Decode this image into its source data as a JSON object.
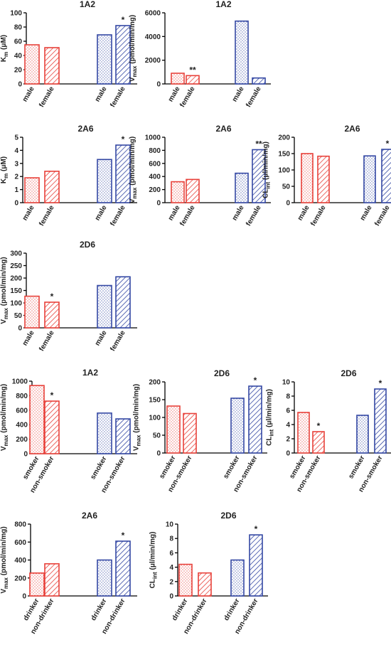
{
  "colors": {
    "red": "#e8413a",
    "blue": "#3347a3",
    "axis": "#000000"
  },
  "chart_data": [
    {
      "type": "bar",
      "title": "1A2",
      "ylabel": "Km (μM)",
      "ylabel_main": "K",
      "ylabel_sub": "m",
      "ylabel_rest": " (μM)",
      "ylim": [
        0,
        100
      ],
      "yticks": [
        "0",
        "20",
        "40",
        "60",
        "80",
        "100"
      ],
      "categories": [
        "male",
        "female",
        "male",
        "female"
      ],
      "values": [
        55,
        51,
        69,
        82
      ],
      "colors": [
        "red",
        "red",
        "blue",
        "blue"
      ],
      "fills": [
        "dots",
        "hatch",
        "dots",
        "hatch"
      ],
      "stars": [
        "",
        "",
        "",
        "*"
      ]
    },
    {
      "type": "bar",
      "title": "1A2",
      "ylabel": "Vmax (pmol/min/mg)",
      "ylabel_main": "V",
      "ylabel_sub": "max",
      "ylabel_rest": " (pmol/min/mg)",
      "ylim": [
        0,
        6000
      ],
      "yticks": [
        "0",
        "2000",
        "4000",
        "6000"
      ],
      "categories": [
        "male",
        "female",
        "male",
        "female"
      ],
      "values": [
        900,
        700,
        5300,
        500
      ],
      "colors": [
        "red",
        "red",
        "blue",
        "blue"
      ],
      "fills": [
        "dots",
        "hatch",
        "dots",
        "hatch"
      ],
      "stars": [
        "",
        "**",
        "",
        ""
      ]
    },
    {
      "type": "bar",
      "title": "2A6",
      "ylabel": "Km (μM)",
      "ylabel_main": "K",
      "ylabel_sub": "m",
      "ylabel_rest": " (μM)",
      "ylim": [
        0,
        5
      ],
      "yticks": [
        "0",
        "1",
        "2",
        "3",
        "4",
        "5"
      ],
      "categories": [
        "male",
        "female",
        "male",
        "female"
      ],
      "values": [
        1.9,
        2.4,
        3.3,
        4.4
      ],
      "colors": [
        "red",
        "red",
        "blue",
        "blue"
      ],
      "fills": [
        "dots",
        "hatch",
        "dots",
        "hatch"
      ],
      "stars": [
        "",
        "",
        "",
        "*"
      ]
    },
    {
      "type": "bar",
      "title": "2A6",
      "ylabel": "Vmax (pmol/min/mg)",
      "ylabel_main": "V",
      "ylabel_sub": "max",
      "ylabel_rest": " (pmol/min/mg)",
      "ylim": [
        0,
        1000
      ],
      "yticks": [
        "0",
        "200",
        "400",
        "600",
        "800",
        "1000"
      ],
      "categories": [
        "male",
        "female",
        "male",
        "female"
      ],
      "values": [
        320,
        355,
        450,
        810
      ],
      "colors": [
        "red",
        "red",
        "blue",
        "blue"
      ],
      "fills": [
        "dots",
        "hatch",
        "dots",
        "hatch"
      ],
      "stars": [
        "",
        "",
        "",
        "**"
      ]
    },
    {
      "type": "bar",
      "title": "2A6",
      "ylabel": "CLint (μl/min/mg)",
      "ylabel_main": "CL",
      "ylabel_sub": "int",
      "ylabel_rest": " (μl/min/mg)",
      "ylim": [
        0,
        200
      ],
      "yticks": [
        "0",
        "50",
        "100",
        "150",
        "200"
      ],
      "categories": [
        "male",
        "female",
        "male",
        "female"
      ],
      "values": [
        150,
        142,
        143,
        163
      ],
      "colors": [
        "red",
        "red",
        "blue",
        "blue"
      ],
      "fills": [
        "dots",
        "hatch",
        "dots",
        "hatch"
      ],
      "stars": [
        "",
        "",
        "",
        "*"
      ]
    },
    {
      "type": "bar",
      "title": "2D6",
      "ylabel": "Vmax (pmol/min/mg)",
      "ylabel_main": "V",
      "ylabel_sub": "max",
      "ylabel_rest": " (pmol/min/mg)",
      "ylim": [
        0,
        300
      ],
      "yticks": [
        "0",
        "50",
        "100",
        "150",
        "200",
        "250",
        "300"
      ],
      "categories": [
        "male",
        "female",
        "male",
        "female"
      ],
      "values": [
        127,
        103,
        170,
        205
      ],
      "colors": [
        "red",
        "red",
        "blue",
        "blue"
      ],
      "fills": [
        "dots",
        "hatch",
        "dots",
        "hatch"
      ],
      "stars": [
        "",
        "*",
        "",
        ""
      ]
    },
    {
      "type": "bar",
      "title": "1A2",
      "ylabel": "Vmax (pmol/min/mg)",
      "ylabel_main": "V",
      "ylabel_sub": "max",
      "ylabel_rest": " (pmol/min/mg)",
      "ylim": [
        0,
        1000
      ],
      "yticks": [
        "0",
        "200",
        "400",
        "600",
        "800",
        "1000"
      ],
      "categories": [
        "smoker",
        "non-smoker",
        "smoker",
        "non-smoker"
      ],
      "values": [
        940,
        725,
        560,
        480
      ],
      "colors": [
        "red",
        "red",
        "blue",
        "blue"
      ],
      "fills": [
        "dots",
        "hatch",
        "dots",
        "hatch"
      ],
      "stars": [
        "",
        "*",
        "",
        ""
      ]
    },
    {
      "type": "bar",
      "title": "2D6",
      "ylabel": "Vmax (pmol/min/mg)",
      "ylabel_main": "V",
      "ylabel_sub": "max",
      "ylabel_rest": " (pmol/min/mg)",
      "ylim": [
        0,
        200
      ],
      "yticks": [
        "0",
        "50",
        "100",
        "150",
        "200"
      ],
      "categories": [
        "smoker",
        "non-smoker",
        "smoker",
        "non-smoker"
      ],
      "values": [
        132,
        111,
        154,
        188
      ],
      "colors": [
        "red",
        "red",
        "blue",
        "blue"
      ],
      "fills": [
        "dots",
        "hatch",
        "dots",
        "hatch"
      ],
      "stars": [
        "",
        "",
        "",
        "*"
      ]
    },
    {
      "type": "bar",
      "title": "2D6",
      "ylabel": "CLint (μl/min/mg)",
      "ylabel_main": "CL",
      "ylabel_sub": "int",
      "ylabel_rest": " (μl/min/mg)",
      "ylim": [
        0,
        10
      ],
      "yticks": [
        "0",
        "2",
        "4",
        "6",
        "8",
        "10"
      ],
      "categories": [
        "smoker",
        "non-smoker",
        "smoker",
        "non-smoker"
      ],
      "values": [
        5.7,
        3.0,
        5.3,
        9.0
      ],
      "colors": [
        "red",
        "red",
        "blue",
        "blue"
      ],
      "fills": [
        "dots",
        "hatch",
        "dots",
        "hatch"
      ],
      "stars": [
        "",
        "*",
        "",
        "*"
      ]
    },
    {
      "type": "bar",
      "title": "2A6",
      "ylabel": "Vmax (pmol/min/mg)",
      "ylabel_main": "V",
      "ylabel_sub": "max",
      "ylabel_rest": " (pmol/min/mg)",
      "ylim": [
        0,
        800
      ],
      "yticks": [
        "0",
        "200",
        "400",
        "600",
        "800"
      ],
      "categories": [
        "drinker",
        "non-drinker",
        "drinker",
        "non-drinker"
      ],
      "values": [
        255,
        358,
        400,
        610
      ],
      "colors": [
        "red",
        "red",
        "blue",
        "blue"
      ],
      "fills": [
        "dots",
        "hatch",
        "dots",
        "hatch"
      ],
      "stars": [
        "",
        "",
        "",
        "*"
      ]
    },
    {
      "type": "bar",
      "title": "2D6",
      "ylabel": "CLint (μl/min/mg)",
      "ylabel_main": "CL",
      "ylabel_sub": "int",
      "ylabel_rest": " (μl/min/mg)",
      "ylim": [
        0,
        10
      ],
      "yticks": [
        "0",
        "2",
        "4",
        "6",
        "8",
        "10"
      ],
      "categories": [
        "drinker",
        "non-drinker",
        "drinker",
        "non-drinker"
      ],
      "values": [
        4.4,
        3.2,
        5.0,
        8.5
      ],
      "colors": [
        "red",
        "red",
        "blue",
        "blue"
      ],
      "fills": [
        "dots",
        "hatch",
        "dots",
        "hatch"
      ],
      "stars": [
        "",
        "",
        "",
        "*"
      ]
    }
  ]
}
